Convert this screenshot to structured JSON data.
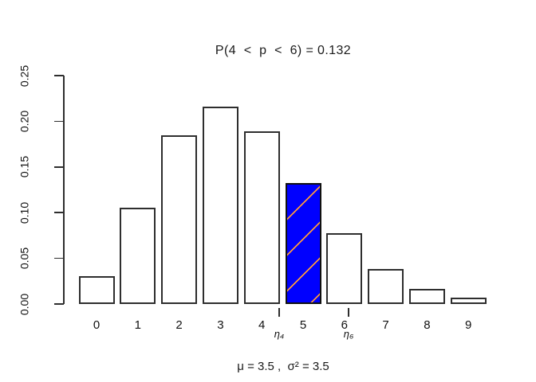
{
  "chart": {
    "title": "P(4  <  p  <  6) = 0.132",
    "footnote": "μ = 3.5 ,  σ² = 3.5"
  },
  "chart_data": {
    "type": "bar",
    "title": "P(4  <  p  <  6) = 0.132",
    "xlabel": "",
    "ylabel": "",
    "categories": [
      "0",
      "1",
      "2",
      "3",
      "4",
      "5",
      "6",
      "7",
      "8",
      "9"
    ],
    "values": [
      0.0302,
      0.1057,
      0.185,
      0.2158,
      0.1888,
      0.1322,
      0.0771,
      0.0385,
      0.0169,
      0.0066
    ],
    "highlight_index": 5,
    "highlight_probability": "0.132",
    "ylim": [
      0,
      0.25
    ],
    "y_ticks": [
      "0.00",
      "0.05",
      "0.10",
      "0.15",
      "0.20",
      "0.25"
    ],
    "y_tick_values": [
      0,
      0.05,
      0.1,
      0.15,
      0.2,
      0.25
    ],
    "grid": false,
    "legend": false,
    "bar_fill": "#ffffff",
    "bar_border": "#2e2e2e",
    "highlight_fill": "#0000ff",
    "highlight_hatch_color": "#ff9a3c",
    "annotations": [
      {
        "label": "η₄",
        "x_units": 4.42
      },
      {
        "label": "η₆",
        "x_units": 6.1
      }
    ],
    "footnote": "μ = 3.5 ,  σ² = 3.5",
    "distribution": {
      "mu": "3.5",
      "sigma_squared": "3.5"
    }
  }
}
